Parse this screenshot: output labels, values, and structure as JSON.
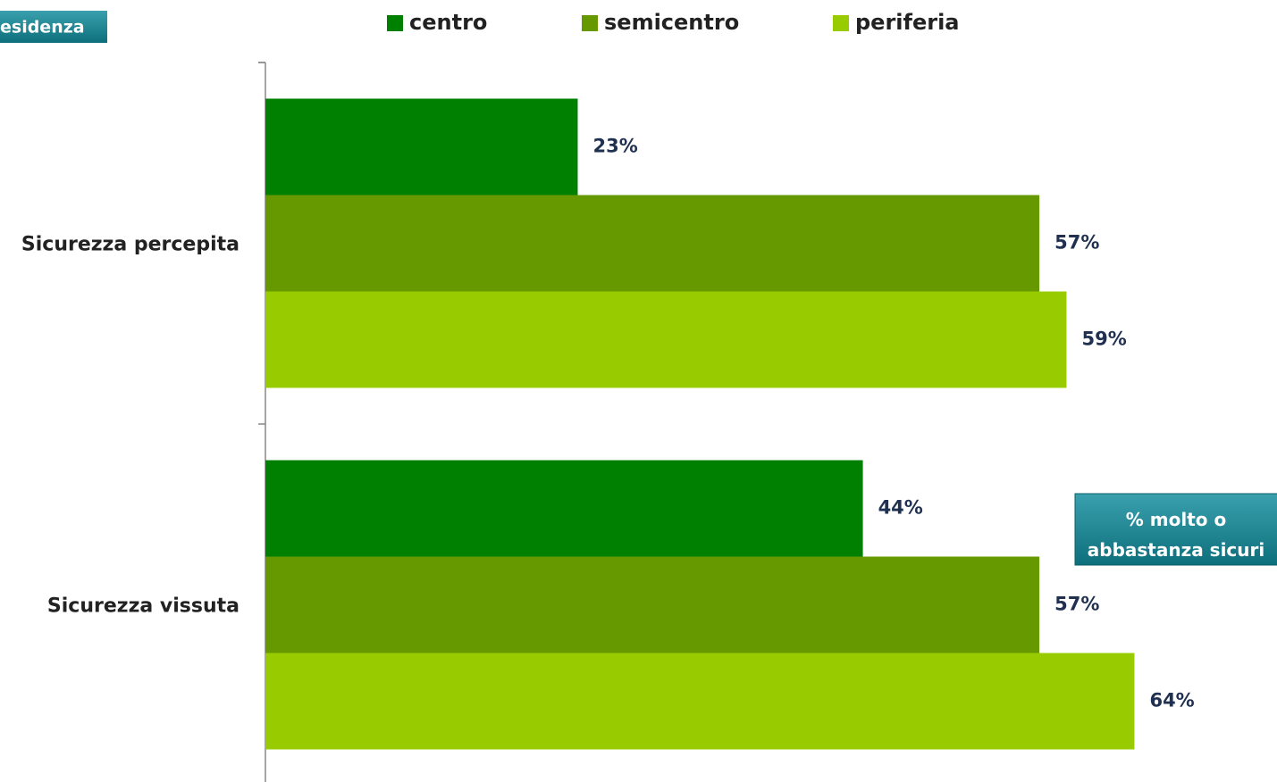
{
  "chart_data": {
    "type": "bar",
    "orientation": "horizontal",
    "tag": "esidenza",
    "annotation": "% molto o abbastanza sicuri",
    "categories": [
      "Sicurezza percepita",
      "Sicurezza vissuta"
    ],
    "series": [
      {
        "name": "centro",
        "color": "#008000",
        "values": [
          23,
          44
        ],
        "value_labels": [
          "23%",
          "44%"
        ]
      },
      {
        "name": "semicentro",
        "color": "#669900",
        "values": [
          57,
          57
        ],
        "value_labels": [
          "57%",
          "57%"
        ]
      },
      {
        "name": "periferia",
        "color": "#99cc00",
        "values": [
          59,
          64
        ],
        "value_labels": [
          "59%",
          "64%"
        ]
      }
    ],
    "xlim": [
      0,
      74.5
    ]
  }
}
